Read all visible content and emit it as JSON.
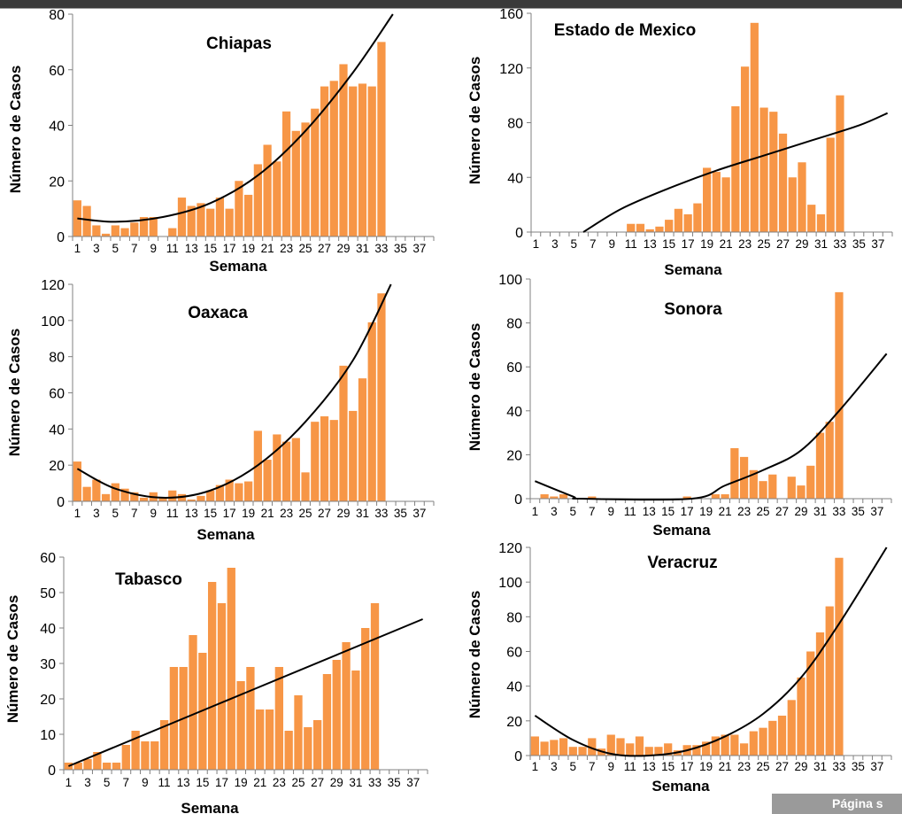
{
  "footer": {
    "page_label": "Página s"
  },
  "chart_data": [
    {
      "type": "bar",
      "title": "Chiapas",
      "xlabel": "Semana",
      "ylabel": "Número de Casos",
      "ylim": [
        0,
        80
      ],
      "yticks": [
        0,
        20,
        40,
        60,
        80
      ],
      "xlim": [
        1,
        38
      ],
      "xtick_labels": [
        1,
        3,
        5,
        7,
        9,
        11,
        13,
        15,
        17,
        19,
        21,
        23,
        25,
        27,
        29,
        31,
        33,
        35,
        37
      ],
      "bar_color": "#f79646",
      "x": [
        1,
        2,
        3,
        4,
        5,
        6,
        7,
        8,
        9,
        10,
        11,
        12,
        13,
        14,
        15,
        16,
        17,
        18,
        19,
        20,
        21,
        22,
        23,
        24,
        25,
        26,
        27,
        28,
        29,
        30,
        31,
        32,
        33
      ],
      "values": [
        13,
        11,
        4,
        1,
        4,
        3,
        5,
        7,
        7,
        0,
        3,
        14,
        11,
        12,
        10,
        14,
        10,
        20,
        15,
        26,
        33,
        27,
        45,
        38,
        41,
        46,
        54,
        56,
        62,
        54,
        55,
        54,
        70
      ],
      "trendline": {
        "type": "polynomial",
        "order": 2,
        "x": [
          1,
          5,
          10,
          15,
          20,
          25,
          30,
          34.2
        ],
        "y": [
          6.5,
          5.3,
          7,
          12,
          22,
          38,
          59,
          80
        ]
      }
    },
    {
      "type": "bar",
      "title": "Estado de Mexico",
      "xlabel": "Semana",
      "ylabel": "Número de Casos",
      "ylim": [
        0,
        160
      ],
      "yticks": [
        0,
        40,
        80,
        120,
        160
      ],
      "xlim": [
        1,
        38
      ],
      "xtick_labels": [
        1,
        3,
        5,
        7,
        9,
        11,
        13,
        15,
        17,
        19,
        21,
        23,
        25,
        27,
        29,
        31,
        33,
        35,
        37
      ],
      "bar_color": "#f79646",
      "x": [
        1,
        2,
        3,
        4,
        5,
        6,
        7,
        8,
        9,
        10,
        11,
        12,
        13,
        14,
        15,
        16,
        17,
        18,
        19,
        20,
        21,
        22,
        23,
        24,
        25,
        26,
        27,
        28,
        29,
        30,
        31,
        32,
        33
      ],
      "values": [
        0,
        0,
        0,
        0,
        0,
        0,
        0,
        0,
        0,
        0,
        6,
        6,
        2,
        4,
        9,
        17,
        13,
        21,
        47,
        44,
        40,
        92,
        121,
        153,
        91,
        88,
        72,
        40,
        51,
        20,
        13,
        69,
        100
      ],
      "trendline": {
        "type": "logarithmic",
        "x": [
          6,
          10,
          15,
          20,
          25,
          30,
          35,
          38
        ],
        "y": [
          0,
          17,
          32,
          45,
          56,
          67,
          78,
          87
        ]
      }
    },
    {
      "type": "bar",
      "title": "Oaxaca",
      "xlabel": "Semana",
      "ylabel": "Número de Casos",
      "ylim": [
        0,
        120
      ],
      "yticks": [
        0,
        20,
        40,
        60,
        80,
        100,
        120
      ],
      "xlim": [
        1,
        38
      ],
      "xtick_labels": [
        1,
        3,
        5,
        7,
        9,
        11,
        13,
        15,
        17,
        19,
        21,
        23,
        25,
        27,
        29,
        31,
        33,
        35,
        37
      ],
      "bar_color": "#f79646",
      "x": [
        1,
        2,
        3,
        4,
        5,
        6,
        7,
        8,
        9,
        10,
        11,
        12,
        13,
        14,
        15,
        16,
        17,
        18,
        19,
        20,
        21,
        22,
        23,
        24,
        25,
        26,
        27,
        28,
        29,
        30,
        31,
        32,
        33
      ],
      "values": [
        22,
        8,
        12,
        4,
        10,
        7,
        5,
        2,
        5,
        2,
        6,
        4,
        1,
        3,
        6,
        9,
        12,
        10,
        11,
        39,
        23,
        37,
        33,
        35,
        16,
        44,
        47,
        45,
        75,
        50,
        68,
        99,
        115
      ],
      "trendline": {
        "type": "polynomial",
        "order": 2,
        "x": [
          1,
          5,
          10,
          15,
          20,
          25,
          30,
          34
        ],
        "y": [
          18,
          7,
          2,
          6,
          20,
          44,
          78,
          120
        ]
      }
    },
    {
      "type": "bar",
      "title": "Sonora",
      "xlabel": "Semana",
      "ylabel": "Número de Casos",
      "ylim": [
        0,
        100
      ],
      "yticks": [
        0,
        20,
        40,
        60,
        80,
        100
      ],
      "xlim": [
        1,
        38
      ],
      "xtick_labels": [
        1,
        3,
        5,
        7,
        9,
        11,
        13,
        15,
        17,
        19,
        21,
        23,
        25,
        27,
        29,
        31,
        33,
        35,
        37
      ],
      "bar_color": "#f79646",
      "x": [
        1,
        2,
        3,
        4,
        5,
        6,
        7,
        8,
        9,
        10,
        11,
        12,
        13,
        14,
        15,
        16,
        17,
        18,
        19,
        20,
        21,
        22,
        23,
        24,
        25,
        26,
        27,
        28,
        29,
        30,
        31,
        32,
        33
      ],
      "values": [
        0,
        2,
        1,
        2,
        0,
        0,
        1,
        0,
        0,
        0,
        0,
        0,
        0,
        0,
        0,
        0,
        1,
        0,
        0,
        2,
        2,
        23,
        19,
        13,
        8,
        11,
        0,
        10,
        6,
        15,
        30,
        35,
        94
      ],
      "trendline": {
        "type": "polynomial",
        "order": 2,
        "x": [
          1,
          5,
          6,
          17.5,
          21,
          25,
          29,
          33,
          38
        ],
        "y": [
          8,
          1,
          0,
          0,
          6,
          13,
          22,
          40,
          66
        ]
      }
    },
    {
      "type": "bar",
      "title": "Tabasco",
      "xlabel": "Semana",
      "ylabel": "Número de Casos",
      "ylim": [
        0,
        60
      ],
      "yticks": [
        0,
        10,
        20,
        30,
        40,
        50,
        60
      ],
      "xlim": [
        1,
        38
      ],
      "xtick_labels": [
        1,
        3,
        5,
        7,
        9,
        11,
        13,
        15,
        17,
        19,
        21,
        23,
        25,
        27,
        29,
        31,
        33,
        35,
        37
      ],
      "bar_color": "#f79646",
      "x": [
        1,
        2,
        3,
        4,
        5,
        6,
        7,
        8,
        9,
        10,
        11,
        12,
        13,
        14,
        15,
        16,
        17,
        18,
        19,
        20,
        21,
        22,
        23,
        24,
        25,
        26,
        27,
        28,
        29,
        30,
        31,
        32,
        33
      ],
      "values": [
        2,
        2,
        3,
        5,
        2,
        2,
        7,
        11,
        8,
        8,
        14,
        29,
        29,
        38,
        33,
        53,
        47,
        57,
        25,
        29,
        17,
        17,
        29,
        11,
        21,
        12,
        14,
        27,
        31,
        36,
        28,
        40,
        47
      ],
      "trendline": {
        "type": "linear",
        "x": [
          1,
          38
        ],
        "y": [
          1,
          42.5
        ]
      }
    },
    {
      "type": "bar",
      "title": "Veracruz",
      "xlabel": "Semana",
      "ylabel": "Número de Casos",
      "ylim": [
        0,
        120
      ],
      "yticks": [
        0,
        20,
        40,
        60,
        80,
        100,
        120
      ],
      "xlim": [
        1,
        38
      ],
      "xtick_labels": [
        1,
        3,
        5,
        7,
        9,
        11,
        13,
        15,
        17,
        19,
        21,
        23,
        25,
        27,
        29,
        31,
        33,
        35,
        37
      ],
      "bar_color": "#f79646",
      "x": [
        1,
        2,
        3,
        4,
        5,
        6,
        7,
        8,
        9,
        10,
        11,
        12,
        13,
        14,
        15,
        16,
        17,
        18,
        19,
        20,
        21,
        22,
        23,
        24,
        25,
        26,
        27,
        28,
        29,
        30,
        31,
        32,
        33
      ],
      "values": [
        11,
        8,
        9,
        10,
        5,
        5,
        10,
        4,
        12,
        10,
        7,
        11,
        5,
        5,
        7,
        3,
        6,
        6,
        8,
        11,
        12,
        12,
        7,
        14,
        16,
        20,
        23,
        32,
        45,
        60,
        71,
        86,
        114
      ],
      "trendline": {
        "type": "polynomial",
        "order": 2,
        "x": [
          1,
          5,
          9,
          13,
          17,
          21,
          25,
          29,
          33,
          38
        ],
        "y": [
          23,
          9,
          1,
          0,
          3,
          11,
          24,
          45,
          76,
          120
        ]
      }
    }
  ]
}
